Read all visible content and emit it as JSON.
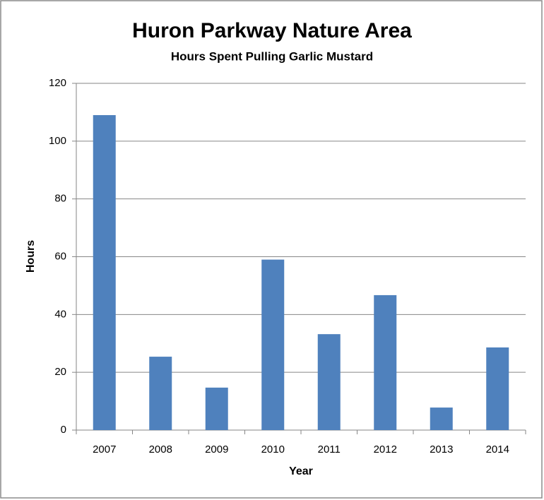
{
  "chart_data": {
    "type": "bar",
    "title": "Huron Parkway Nature Area",
    "subtitle": "Hours Spent Pulling Garlic Mustard",
    "x_label": "Year",
    "y_label": "Hours",
    "categories": [
      "2007",
      "2008",
      "2009",
      "2010",
      "2011",
      "2012",
      "2013",
      "2014"
    ],
    "values": [
      109,
      25.4,
      14.7,
      59,
      33.2,
      46.7,
      7.8,
      28.6
    ],
    "color": "#4f81bd",
    "ylim": [
      0,
      120
    ],
    "yticks": [
      0,
      20,
      40,
      60,
      80,
      100,
      120
    ],
    "grid": true
  }
}
